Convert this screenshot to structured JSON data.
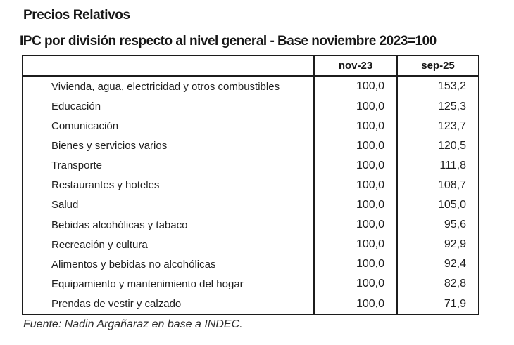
{
  "page": {
    "title": "Precios Relativos",
    "subtitle": "IPC por división respecto al nivel general - Base noviembre 2023=100",
    "source": "Fuente: Nadin Argañaraz en base a INDEC."
  },
  "colors": {
    "background": "#ffffff",
    "text": "#1f1f1f",
    "border": "#1c1c1c"
  },
  "table": {
    "columns": [
      "",
      "nov-23",
      "sep-25"
    ],
    "rows": [
      {
        "label": "Vivienda, agua, electricidad y otros combustibles",
        "nov23": "100,0",
        "sep25": "153,2"
      },
      {
        "label": "Educación",
        "nov23": "100,0",
        "sep25": "125,3"
      },
      {
        "label": "Comunicación",
        "nov23": "100,0",
        "sep25": "123,7"
      },
      {
        "label": "Bienes y servicios varios",
        "nov23": "100,0",
        "sep25": "120,5"
      },
      {
        "label": "Transporte",
        "nov23": "100,0",
        "sep25": "111,8"
      },
      {
        "label": "Restaurantes y hoteles",
        "nov23": "100,0",
        "sep25": "108,7"
      },
      {
        "label": "Salud",
        "nov23": "100,0",
        "sep25": "105,0"
      },
      {
        "label": "Bebidas alcohólicas y tabaco",
        "nov23": "100,0",
        "sep25": "95,6"
      },
      {
        "label": "Recreación y cultura",
        "nov23": "100,0",
        "sep25": "92,9"
      },
      {
        "label": "Alimentos y bebidas no alcohólicas",
        "nov23": "100,0",
        "sep25": "92,4"
      },
      {
        "label": "Equipamiento y mantenimiento del hogar",
        "nov23": "100,0",
        "sep25": "82,8"
      },
      {
        "label": "Prendas de vestir y calzado",
        "nov23": "100,0",
        "sep25": "71,9"
      }
    ]
  },
  "chart_data": {
    "type": "table",
    "title": "Precios Relativos",
    "subtitle": "IPC por división respecto al nivel general - Base noviembre 2023=100",
    "source": "Fuente: Nadin Argañaraz en base a INDEC.",
    "base": "noviembre 2023 = 100",
    "columns": [
      "nov-23",
      "sep-25"
    ],
    "categories": [
      "Vivienda, agua, electricidad y otros combustibles",
      "Educación",
      "Comunicación",
      "Bienes y servicios varios",
      "Transporte",
      "Restaurantes y hoteles",
      "Salud",
      "Bebidas alcohólicas y tabaco",
      "Recreación y cultura",
      "Alimentos y bebidas no alcohólicas",
      "Equipamiento y mantenimiento del hogar",
      "Prendas de vestir y calzado"
    ],
    "series": [
      {
        "name": "nov-23",
        "values": [
          100.0,
          100.0,
          100.0,
          100.0,
          100.0,
          100.0,
          100.0,
          100.0,
          100.0,
          100.0,
          100.0,
          100.0
        ]
      },
      {
        "name": "sep-25",
        "values": [
          153.2,
          125.3,
          123.7,
          120.5,
          111.8,
          108.7,
          105.0,
          95.6,
          92.9,
          92.4,
          82.8,
          71.9
        ]
      }
    ]
  }
}
